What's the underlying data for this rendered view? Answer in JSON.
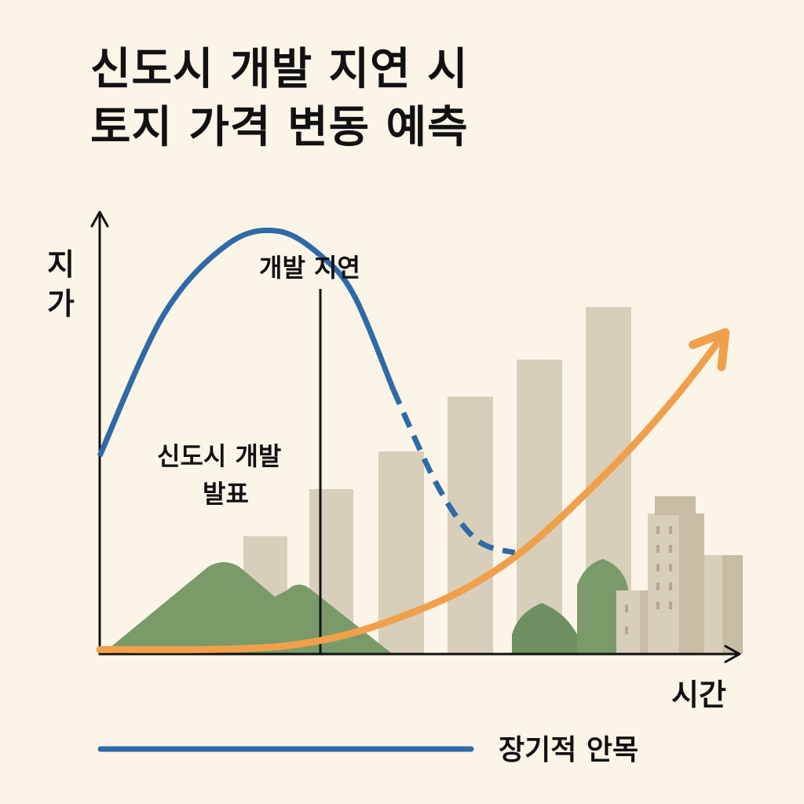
{
  "title": {
    "line1": "신도시 개발 지연 시",
    "line2": "토지 가격 변동 예측"
  },
  "chart_data": {
    "type": "line",
    "title": "신도시 개발 지연 시 토지 가격 변동 예측",
    "ylabel": "지가",
    "xlabel": "시간",
    "grid": false,
    "annotations": [
      {
        "text": "개발 지연",
        "kind": "vertical-line"
      },
      {
        "text": "신도시 개발 발표",
        "kind": "label"
      }
    ],
    "legend": [
      {
        "name": "장기적 안목",
        "color": "#2f6aa8",
        "placement": "bottom-center"
      }
    ],
    "series": [
      {
        "name": "",
        "color": "#2f6aa8",
        "style": "solid-then-dashed",
        "points": [
          [
            0.0,
            0.45
          ],
          [
            0.1,
            0.77
          ],
          [
            0.2,
            0.93
          ],
          [
            0.28,
            0.96
          ],
          [
            0.35,
            0.9
          ],
          [
            0.4,
            0.81
          ],
          [
            0.46,
            0.6
          ],
          [
            0.53,
            0.38
          ],
          [
            0.59,
            0.26
          ],
          [
            0.65,
            0.23
          ]
        ]
      },
      {
        "name": "",
        "color": "#f0a04b",
        "style": "arrow",
        "points": [
          [
            0.0,
            0.01
          ],
          [
            0.3,
            0.02
          ],
          [
            0.5,
            0.1
          ],
          [
            0.65,
            0.22
          ],
          [
            0.8,
            0.42
          ],
          [
            0.9,
            0.58
          ],
          [
            0.98,
            0.73
          ]
        ]
      }
    ],
    "xlim": [
      0,
      1
    ],
    "ylim": [
      0,
      1
    ]
  },
  "colors": {
    "background": "#fbf5e8",
    "axis": "#111111",
    "blue": "#2f6aa8",
    "orange": "#f0a04b",
    "building": "#d7cfba",
    "building_dark": "#c6bda4",
    "mountain": "#7a9a6a"
  }
}
